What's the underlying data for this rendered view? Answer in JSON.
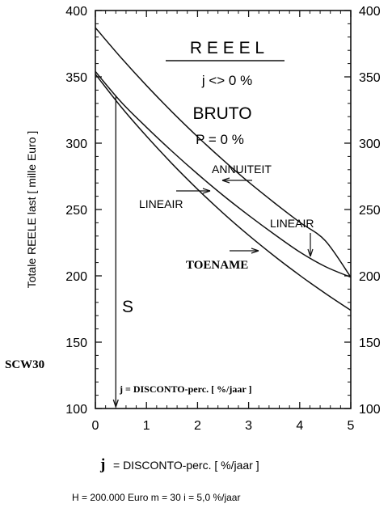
{
  "chart_data": {
    "type": "line",
    "xlabel_prefix": "j",
    "xlabel_rest": "= DISCONTO-perc. [ %/jaar ]",
    "ylabel": "Totale REELE last  [ mille Euro ]",
    "xlim": [
      0,
      5
    ],
    "ylim": [
      100,
      400
    ],
    "x_ticks": [
      "0",
      "1",
      "2",
      "3",
      "4",
      "5"
    ],
    "y_ticks": [
      "100",
      "150",
      "200",
      "250",
      "300",
      "350",
      "400"
    ],
    "series": [
      {
        "x": [
          0,
          0.5,
          1,
          1.5,
          2,
          2.5,
          3,
          3.5,
          4,
          4.5,
          5
        ],
        "values": [
          387,
          364.6,
          343.5,
          323.6,
          304.9,
          287.3,
          270.7,
          255.2,
          240.4,
          226.5,
          199
        ]
      },
      {
        "x": [
          0,
          0.5,
          1,
          1.5,
          2,
          2.5,
          3,
          3.5,
          4,
          4.5,
          5
        ],
        "values": [
          354,
          331.2,
          312.0,
          293.9,
          276.8,
          260.7,
          245.6,
          231.4,
          218.0,
          207.0,
          199
        ]
      },
      {
        "x": [
          0,
          0.5,
          1,
          1.5,
          2,
          2.5,
          3,
          3.5,
          4,
          4.5,
          5
        ],
        "values": [
          352,
          327.5,
          305.3,
          284.6,
          265.3,
          247.3,
          230.6,
          215.0,
          200.4,
          186.8,
          174
        ]
      }
    ],
    "annotations": {
      "reeel": "R E E E L",
      "j_not_zero": "j  <>  0  %",
      "bruto": "BRUTO",
      "p_zero": "P  =  0  %",
      "annuiteit": "ANNUITEIT",
      "lineair_left": "LINEAIR",
      "lineair_right": "LINEAIR",
      "toename": "TOENAME",
      "s_marker": "S",
      "s_marker_x": 0.4,
      "inner_label": "j = DISCONTO-perc.  [  %/jaar  ]",
      "scw": "SCW30"
    },
    "footer": "H  =  200.000  Euro    m  =  30    i  =  5,0  %/jaar"
  }
}
